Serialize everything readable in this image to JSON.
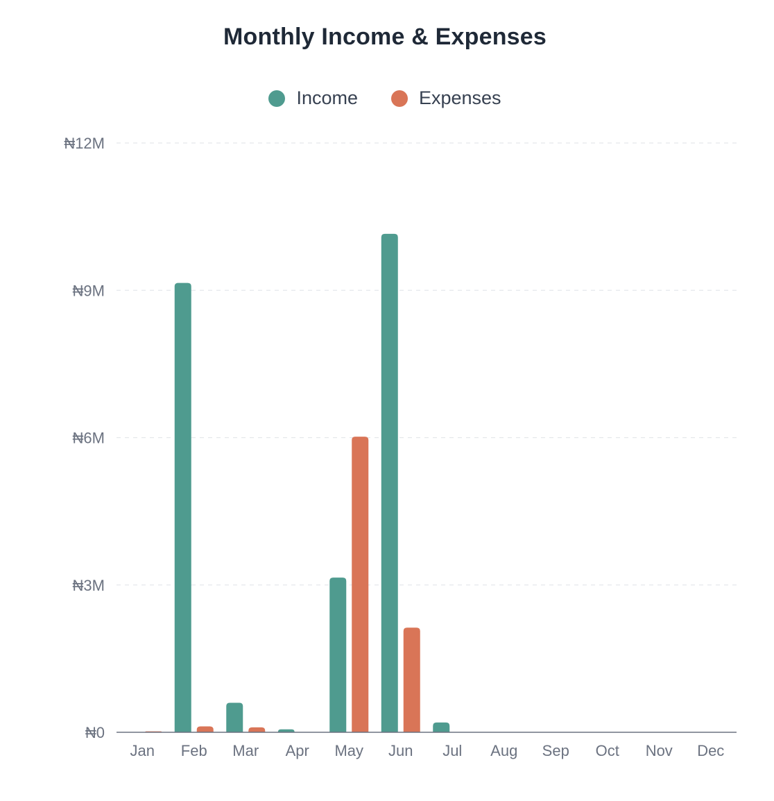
{
  "chart_data": {
    "type": "bar",
    "title": "Monthly Income & Expenses",
    "categories": [
      "Jan",
      "Feb",
      "Mar",
      "Apr",
      "May",
      "Jun",
      "Jul",
      "Aug",
      "Sep",
      "Oct",
      "Nov",
      "Dec"
    ],
    "series": [
      {
        "name": "Income",
        "color": "#4f9b8f",
        "values": [
          0,
          9150000,
          600000,
          60000,
          3150000,
          10150000,
          200000,
          0,
          0,
          0,
          0,
          0
        ]
      },
      {
        "name": "Expenses",
        "color": "#d97557",
        "values": [
          20000,
          120000,
          100000,
          0,
          6020000,
          2130000,
          0,
          0,
          0,
          0,
          0,
          0
        ]
      }
    ],
    "yticks": [
      {
        "value": 0,
        "label": "₦0"
      },
      {
        "value": 3000000,
        "label": "₦3M"
      },
      {
        "value": 6000000,
        "label": "₦6M"
      },
      {
        "value": 9000000,
        "label": "₦9M"
      },
      {
        "value": 12000000,
        "label": "₦12M"
      }
    ],
    "ylim": [
      0,
      12000000
    ],
    "grid": true,
    "legend_position": "top-center",
    "xlabel": "",
    "ylabel": ""
  }
}
